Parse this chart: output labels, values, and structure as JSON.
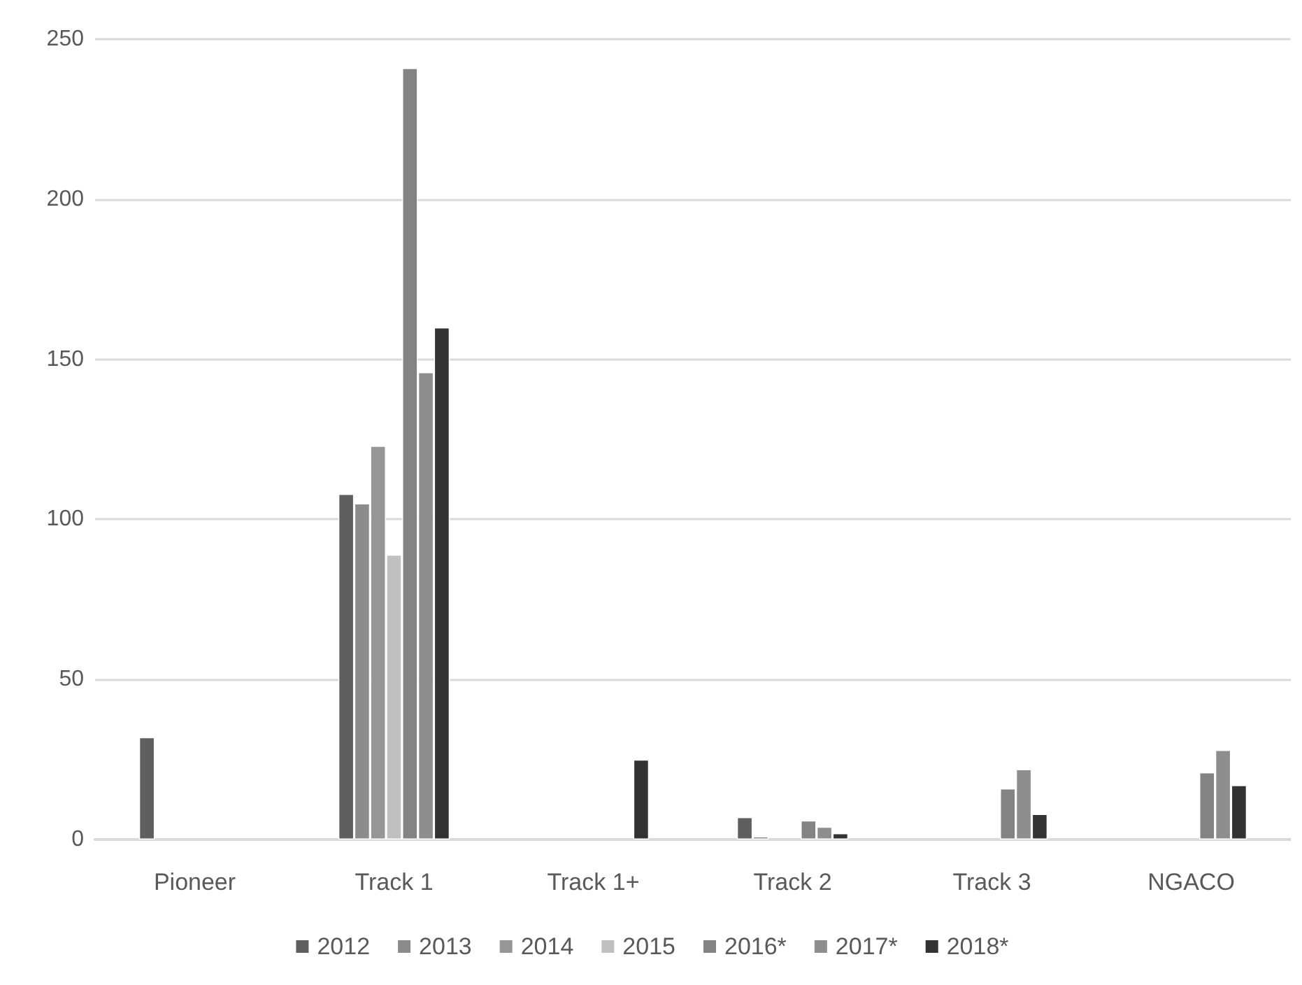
{
  "chart_data": {
    "type": "bar",
    "categories": [
      "Pioneer",
      "Track 1",
      "Track 1+",
      "Track 2",
      "Track 3",
      "NGACO"
    ],
    "series": [
      {
        "name": "2012",
        "color": "#5f5f5f",
        "values": [
          32,
          108,
          null,
          7,
          null,
          null
        ]
      },
      {
        "name": "2013",
        "color": "#8c8c8c",
        "values": [
          null,
          105,
          null,
          1,
          null,
          null
        ]
      },
      {
        "name": "2014",
        "color": "#969696",
        "values": [
          null,
          123,
          null,
          null,
          null,
          null
        ]
      },
      {
        "name": "2015",
        "color": "#c0c0c0",
        "values": [
          null,
          89,
          null,
          null,
          null,
          null
        ]
      },
      {
        "name": "2016*",
        "color": "#838383",
        "values": [
          null,
          241,
          null,
          6,
          16,
          21
        ]
      },
      {
        "name": "2017*",
        "color": "#8e8e8e",
        "values": [
          null,
          146,
          null,
          4,
          22,
          28
        ]
      },
      {
        "name": "2018*",
        "color": "#333333",
        "values": [
          null,
          160,
          25,
          2,
          8,
          17
        ]
      }
    ],
    "ylim": [
      0,
      250
    ],
    "yticks": [
      0,
      50,
      100,
      150,
      200,
      250
    ],
    "grid": "y",
    "legend": "bottom"
  }
}
